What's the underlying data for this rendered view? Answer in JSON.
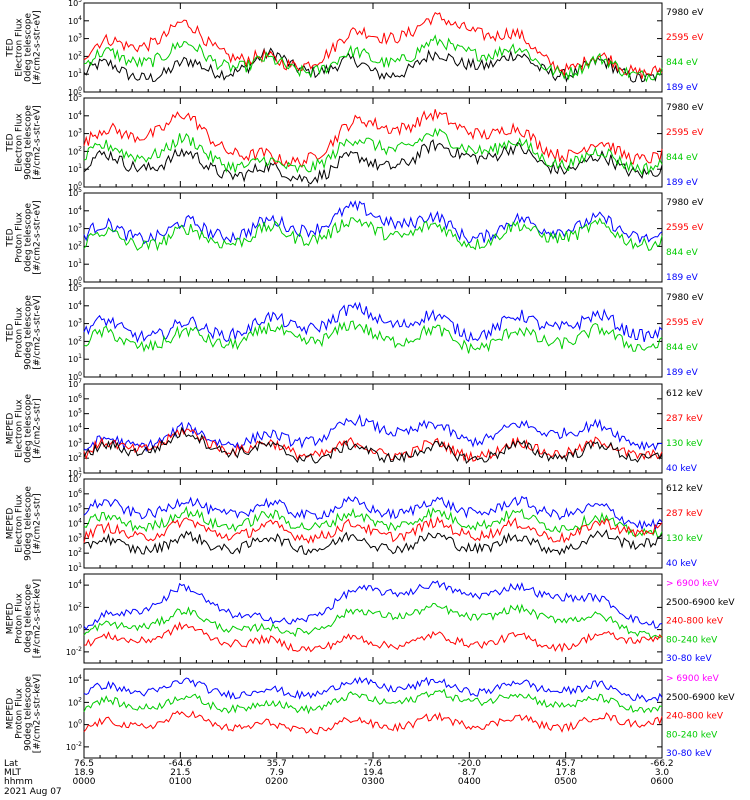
{
  "figure": {
    "date": "2021 Aug 07",
    "axis_rows": [
      {
        "label": "Lat",
        "values": [
          "76.5",
          "-64.6",
          "35.7",
          "-7.6",
          "-20.0",
          "45.7",
          "-66.2"
        ]
      },
      {
        "label": "MLT",
        "values": [
          "18.9",
          "21.5",
          "7.9",
          "19.4",
          "8.7",
          "17.8",
          "3.0"
        ]
      },
      {
        "label": "hhmm",
        "values": [
          "0000",
          "0100",
          "0200",
          "0300",
          "0400",
          "0500",
          "0600"
        ]
      }
    ]
  },
  "colors": {
    "black": "#000000",
    "red": "#ff0000",
    "green": "#00cc00",
    "blue": "#0000ff",
    "magenta": "#ff00ff"
  },
  "chart_data": [
    {
      "type": "line",
      "ylabel": [
        "TED",
        "Electron Flux",
        "0deg telescope",
        "[#/cm2-s-str-eV]"
      ],
      "yscale": "log",
      "ylim_exp": [
        0,
        5
      ],
      "tick_labels": [
        "10^0",
        "10^1",
        "10^2",
        "10^3",
        "10^4",
        "10^5"
      ],
      "legend": [
        {
          "text": "7980 eV",
          "color": "#000000"
        },
        {
          "text": "2595 eV",
          "color": "#ff0000"
        },
        {
          "text": "844 eV",
          "color": "#00cc00"
        },
        {
          "text": "189 eV",
          "color": "#0000ff"
        }
      ],
      "x": [
        "0000",
        "0100",
        "0200",
        "0300",
        "0400",
        "0500",
        "0600"
      ],
      "series_log10": [
        {
          "color": "#000000",
          "values": [
            1.0,
            1.1,
            1.6,
            1.1,
            1.8,
            1.2,
            1.0
          ]
        },
        {
          "color": "#ff0000",
          "values": [
            2.0,
            3.4,
            1.2,
            3.2,
            3.8,
            1.5,
            1.3
          ]
        },
        {
          "color": "#00cc00",
          "values": [
            1.5,
            2.2,
            1.2,
            1.8,
            2.5,
            1.3,
            1.2
          ]
        }
      ]
    },
    {
      "type": "line",
      "ylabel": [
        "TED",
        "Electron Flux",
        "90deg telescope",
        "[#/cm2-s-str-eV]"
      ],
      "yscale": "log",
      "ylim_exp": [
        0,
        5
      ],
      "tick_labels": [
        "10^0",
        "10^1",
        "10^2",
        "10^3",
        "10^4",
        "10^5"
      ],
      "legend": [
        {
          "text": "7980 eV",
          "color": "#000000"
        },
        {
          "text": "2595 eV",
          "color": "#ff0000"
        },
        {
          "text": "844 eV",
          "color": "#00cc00"
        },
        {
          "text": "189 eV",
          "color": "#0000ff"
        }
      ],
      "x": [
        "0000",
        "0100",
        "0200",
        "0300",
        "0400",
        "0500",
        "0600"
      ],
      "series_log10": [
        {
          "color": "#000000",
          "values": [
            1.2,
            1.4,
            0.5,
            1.3,
            2.0,
            1.2,
            1.0
          ]
        },
        {
          "color": "#ff0000",
          "values": [
            2.4,
            3.6,
            1.0,
            3.6,
            3.4,
            2.0,
            1.8
          ]
        },
        {
          "color": "#00cc00",
          "values": [
            1.6,
            2.2,
            0.8,
            2.4,
            2.4,
            1.5,
            1.3
          ]
        }
      ]
    },
    {
      "type": "line",
      "ylabel": [
        "TED",
        "Proton Flux",
        "0deg telescope",
        "[#/cm2-s-str-eV]"
      ],
      "yscale": "log",
      "ylim_exp": [
        0,
        5
      ],
      "tick_labels": [
        "10^0",
        "10^1",
        "10^2",
        "10^3",
        "10^4",
        "10^5"
      ],
      "legend": [
        {
          "text": "7980 eV",
          "color": "#000000"
        },
        {
          "text": "2595 eV",
          "color": "#ff0000"
        },
        {
          "text": "844 eV",
          "color": "#00cc00"
        },
        {
          "text": "189 eV",
          "color": "#0000ff"
        }
      ],
      "x": [
        "0000",
        "0100",
        "0200",
        "0300",
        "0400",
        "0500",
        "0600"
      ],
      "series_log10": [
        {
          "color": "#0000ff",
          "values": [
            2.6,
            2.8,
            2.9,
            3.8,
            2.7,
            3.2,
            2.6
          ]
        },
        {
          "color": "#00cc00",
          "values": [
            2.2,
            2.4,
            2.5,
            3.0,
            2.4,
            2.8,
            2.3
          ]
        }
      ]
    },
    {
      "type": "line",
      "ylabel": [
        "TED",
        "Proton Flux",
        "90deg telescope",
        "[#/cm2-s-str-eV]"
      ],
      "yscale": "log",
      "ylim_exp": [
        0,
        5
      ],
      "tick_labels": [
        "10^0",
        "10^1",
        "10^2",
        "10^3",
        "10^4",
        "10^5"
      ],
      "legend": [
        {
          "text": "7980 eV",
          "color": "#000000"
        },
        {
          "text": "2595 eV",
          "color": "#ff0000"
        },
        {
          "text": "844 eV",
          "color": "#00cc00"
        },
        {
          "text": "189 eV",
          "color": "#0000ff"
        }
      ],
      "x": [
        "0000",
        "0100",
        "0200",
        "0300",
        "0400",
        "0500",
        "0600"
      ],
      "series_log10": [
        {
          "color": "#0000ff",
          "values": [
            2.6,
            2.5,
            2.8,
            3.4,
            2.6,
            3.1,
            2.5
          ]
        },
        {
          "color": "#00cc00",
          "values": [
            1.9,
            2.0,
            2.2,
            2.4,
            1.9,
            2.2,
            1.9
          ]
        }
      ]
    },
    {
      "type": "line",
      "ylabel": [
        "MEPED",
        "Electron Flux",
        "0deg telescope",
        "[#/cm2-s-str]"
      ],
      "yscale": "log",
      "ylim_exp": [
        1,
        7
      ],
      "tick_labels": [
        "10^1",
        "10^2",
        "10^3",
        "10^4",
        "10^5",
        "10^6",
        "10^7"
      ],
      "legend": [
        {
          "text": "612 keV",
          "color": "#000000"
        },
        {
          "text": "287 keV",
          "color": "#ff0000"
        },
        {
          "text": "130 keV",
          "color": "#00cc00"
        },
        {
          "text": "40 keV",
          "color": "#0000ff"
        }
      ],
      "x": [
        "0000",
        "0100",
        "0200",
        "0300",
        "0400",
        "0500",
        "0600"
      ],
      "series_log10": [
        {
          "color": "#0000ff",
          "values": [
            2.5,
            3.5,
            3.0,
            4.2,
            3.4,
            4.0,
            3.0
          ]
        },
        {
          "color": "#ff0000",
          "values": [
            2.2,
            3.3,
            2.4,
            2.5,
            2.4,
            2.6,
            2.4
          ]
        },
        {
          "color": "#000000",
          "values": [
            2.0,
            3.2,
            2.2,
            2.3,
            2.2,
            2.4,
            2.2
          ]
        }
      ]
    },
    {
      "type": "line",
      "ylabel": [
        "MEPED",
        "Electron Flux",
        "90deg telescope",
        "[#/cm2-s-str]"
      ],
      "yscale": "log",
      "ylim_exp": [
        1,
        7
      ],
      "tick_labels": [
        "10^1",
        "10^2",
        "10^3",
        "10^4",
        "10^5",
        "10^6",
        "10^7"
      ],
      "legend": [
        {
          "text": "612 keV",
          "color": "#000000"
        },
        {
          "text": "287 keV",
          "color": "#ff0000"
        },
        {
          "text": "130 keV",
          "color": "#00cc00"
        },
        {
          "text": "40 keV",
          "color": "#0000ff"
        }
      ],
      "x": [
        "0000",
        "0100",
        "0200",
        "0300",
        "0400",
        "0500",
        "0600"
      ],
      "series_log10": [
        {
          "color": "#0000ff",
          "values": [
            4.8,
            5.0,
            4.8,
            4.9,
            5.0,
            4.9,
            4.0
          ]
        },
        {
          "color": "#00cc00",
          "values": [
            3.8,
            4.2,
            4.0,
            4.1,
            4.2,
            4.0,
            3.5
          ]
        },
        {
          "color": "#ff0000",
          "values": [
            3.0,
            3.6,
            3.3,
            3.4,
            3.5,
            3.3,
            3.8
          ]
        },
        {
          "color": "#000000",
          "values": [
            2.3,
            2.6,
            2.5,
            2.6,
            2.6,
            2.5,
            3.0
          ]
        }
      ]
    },
    {
      "type": "line",
      "ylabel": [
        "MEPED",
        "Proton Flux",
        "0deg telescope",
        "[#/cm2-s-str-keV]"
      ],
      "yscale": "log",
      "ylim_exp": [
        -3,
        5
      ],
      "tick_labels": [
        "10^-2",
        "10^0",
        "10^2",
        "10^4"
      ],
      "tick_exps": [
        -2,
        0,
        2,
        4
      ],
      "legend": [
        {
          "text": "> 6900 keV",
          "color": "#ff00ff"
        },
        {
          "text": "2500-6900 keV",
          "color": "#000000"
        },
        {
          "text": "240-800 keV",
          "color": "#ff0000"
        },
        {
          "text": "80-240 keV",
          "color": "#00cc00"
        },
        {
          "text": "30-80 keV",
          "color": "#0000ff"
        }
      ],
      "x": [
        "0000",
        "0100",
        "0200",
        "0300",
        "0400",
        "0500",
        "0600"
      ],
      "series_log10": [
        {
          "color": "#0000ff",
          "values": [
            0.0,
            3.4,
            0.2,
            3.6,
            3.4,
            3.2,
            0.4
          ]
        },
        {
          "color": "#00cc00",
          "values": [
            -0.5,
            1.2,
            -0.5,
            1.5,
            1.4,
            1.2,
            -0.4
          ]
        },
        {
          "color": "#ff0000",
          "values": [
            -1.5,
            -0.2,
            -1.6,
            -1.2,
            -1.0,
            -1.3,
            -0.5
          ]
        }
      ]
    },
    {
      "type": "line",
      "ylabel": [
        "MEPED",
        "Proton Flux",
        "90deg telescope",
        "[#/cm2-s-str-keV]"
      ],
      "yscale": "log",
      "ylim_exp": [
        -3,
        5
      ],
      "tick_labels": [
        "10^-2",
        "10^0",
        "10^2",
        "10^4"
      ],
      "tick_exps": [
        -2,
        0,
        2,
        4
      ],
      "legend": [
        {
          "text": "> 6900 keV",
          "color": "#ff00ff"
        },
        {
          "text": "2500-6900 keV",
          "color": "#000000"
        },
        {
          "text": "240-800 keV",
          "color": "#ff0000"
        },
        {
          "text": "80-240 keV",
          "color": "#00cc00"
        },
        {
          "text": "30-80 keV",
          "color": "#0000ff"
        }
      ],
      "x": [
        "0000",
        "0100",
        "0200",
        "0300",
        "0400",
        "0500",
        "0600"
      ],
      "series_log10": [
        {
          "color": "#0000ff",
          "values": [
            2.8,
            3.4,
            2.6,
            3.6,
            3.2,
            3.3,
            2.5
          ]
        },
        {
          "color": "#00cc00",
          "values": [
            1.5,
            2.0,
            1.4,
            2.2,
            2.4,
            2.0,
            1.4
          ]
        },
        {
          "color": "#ff0000",
          "values": [
            -0.5,
            0.5,
            -0.5,
            0.0,
            0.2,
            0.0,
            0.5
          ]
        }
      ]
    }
  ]
}
